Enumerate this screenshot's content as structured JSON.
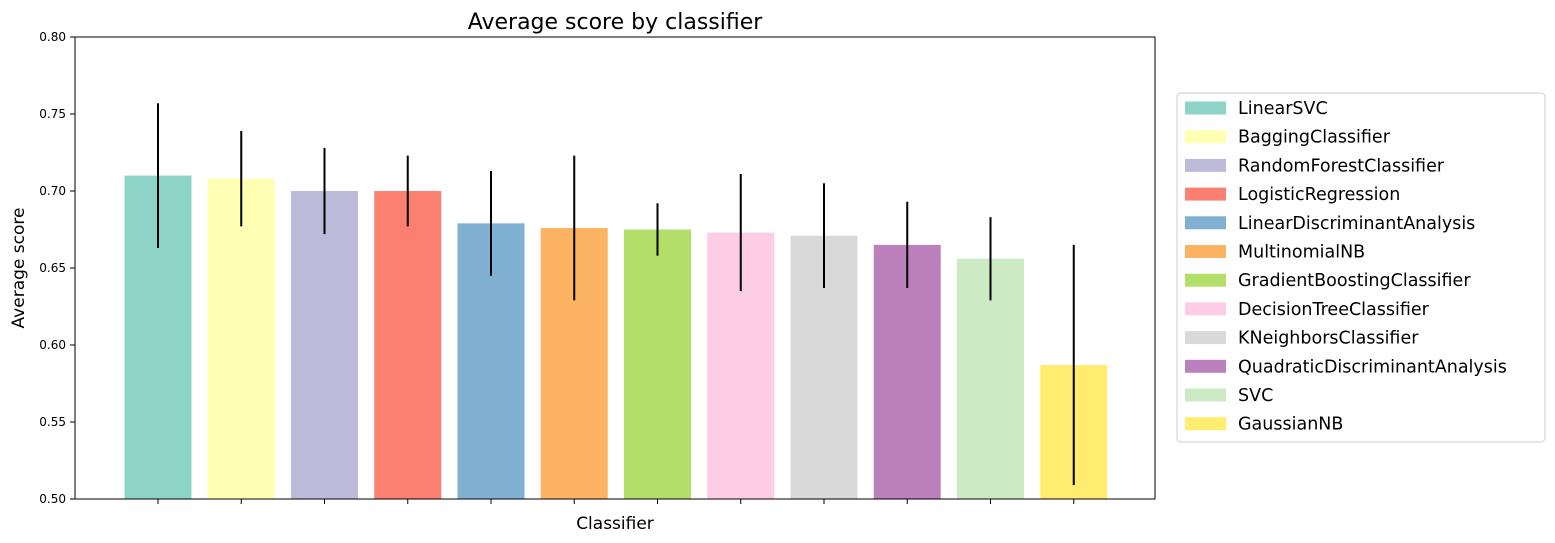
{
  "chart_data": {
    "type": "bar",
    "title": "Average score by classifier",
    "xlabel": "Classifier",
    "ylabel": "Average score",
    "ylim": [
      0.5,
      0.8
    ],
    "yticks": [
      0.5,
      0.55,
      0.6,
      0.65,
      0.7,
      0.75,
      0.8
    ],
    "ytick_labels": [
      "0.50",
      "0.55",
      "0.60",
      "0.65",
      "0.70",
      "0.75",
      "0.80"
    ],
    "grid": false,
    "legend_position": "outside-right",
    "categories": [
      "LinearSVC",
      "BaggingClassifier",
      "RandomForestClassifier",
      "LogisticRegression",
      "LinearDiscriminantAnalysis",
      "MultinomialNB",
      "GradientBoostingClassifier",
      "DecisionTreeClassifier",
      "KNeighborsClassifier",
      "QuadraticDiscriminantAnalysis",
      "SVC",
      "GaussianNB"
    ],
    "values": [
      0.71,
      0.708,
      0.7,
      0.7,
      0.679,
      0.676,
      0.675,
      0.673,
      0.671,
      0.665,
      0.656,
      0.587
    ],
    "errors": [
      0.047,
      0.031,
      0.028,
      0.023,
      0.034,
      0.047,
      0.017,
      0.038,
      0.034,
      0.028,
      0.027,
      0.078
    ],
    "colors": [
      "#8dd3c7",
      "#ffffb3",
      "#bebada",
      "#fb8072",
      "#80b1d3",
      "#fdb462",
      "#b3de69",
      "#fccde5",
      "#d9d9d9",
      "#bc80bd",
      "#ccebc5",
      "#ffed6f"
    ]
  }
}
